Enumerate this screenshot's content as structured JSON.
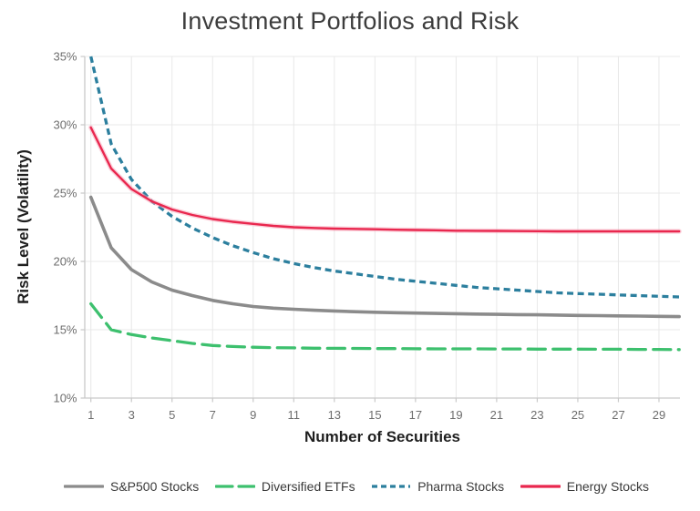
{
  "colors": {
    "background": "#ffffff",
    "grid": "#e8e8e8",
    "axis": "#c9c9c9",
    "tick_label": "#6e6e6e",
    "title": "#3d3d3d",
    "axis_title": "#1f1f1f",
    "legend_text": "#3a3a3a"
  },
  "chart_data": {
    "type": "line",
    "title": "Investment Portfolios and Risk",
    "xlabel": "Number of Securities",
    "ylabel": "Risk Level (Volatility)",
    "xlim": [
      1,
      30
    ],
    "ylim": [
      10,
      35
    ],
    "x_ticks": [
      1,
      3,
      5,
      7,
      9,
      11,
      13,
      15,
      17,
      19,
      21,
      23,
      25,
      27,
      29
    ],
    "y_ticks": [
      10,
      15,
      20,
      25,
      30,
      35
    ],
    "y_tick_suffix": "%",
    "grid": true,
    "legend_position": "bottom",
    "x": [
      1,
      2,
      3,
      4,
      5,
      6,
      7,
      8,
      9,
      10,
      11,
      12,
      13,
      14,
      15,
      16,
      17,
      18,
      19,
      20,
      21,
      22,
      23,
      24,
      25,
      26,
      27,
      28,
      29,
      30
    ],
    "series": [
      {
        "name": "S&P500 Stocks",
        "color": "#8b8b8b",
        "style": "solid",
        "width": 3.6,
        "values": [
          24.7,
          21.0,
          19.4,
          18.5,
          17.9,
          17.5,
          17.15,
          16.9,
          16.7,
          16.58,
          16.5,
          16.43,
          16.37,
          16.32,
          16.28,
          16.25,
          16.22,
          16.19,
          16.17,
          16.15,
          16.13,
          16.11,
          16.09,
          16.07,
          16.05,
          16.03,
          16.01,
          16.0,
          15.98,
          15.96
        ]
      },
      {
        "name": "Diversified ETFs",
        "color": "#3dc06e",
        "style": "long-dash",
        "width": 3.3,
        "values": [
          16.9,
          15.0,
          14.65,
          14.4,
          14.2,
          14.0,
          13.85,
          13.77,
          13.72,
          13.69,
          13.67,
          13.65,
          13.64,
          13.63,
          13.62,
          13.62,
          13.61,
          13.6,
          13.6,
          13.6,
          13.59,
          13.59,
          13.58,
          13.58,
          13.58,
          13.57,
          13.57,
          13.56,
          13.56,
          13.55
        ]
      },
      {
        "name": "Pharma Stocks",
        "color": "#2c7f9e",
        "style": "dash",
        "width": 3.3,
        "values": [
          35.0,
          28.6,
          26.0,
          24.4,
          23.3,
          22.45,
          21.75,
          21.15,
          20.65,
          20.2,
          19.85,
          19.55,
          19.3,
          19.1,
          18.9,
          18.7,
          18.55,
          18.4,
          18.25,
          18.1,
          18.0,
          17.9,
          17.8,
          17.7,
          17.65,
          17.6,
          17.55,
          17.5,
          17.45,
          17.4
        ]
      },
      {
        "name": "Energy Stocks",
        "color": "#e9274e",
        "halo": "#f7a5b9",
        "style": "solid",
        "width": 2.4,
        "values": [
          29.8,
          26.8,
          25.3,
          24.4,
          23.8,
          23.4,
          23.1,
          22.9,
          22.75,
          22.6,
          22.5,
          22.45,
          22.4,
          22.38,
          22.35,
          22.32,
          22.3,
          22.28,
          22.25,
          22.24,
          22.23,
          22.22,
          22.21,
          22.2,
          22.2,
          22.2,
          22.2,
          22.2,
          22.2,
          22.2
        ]
      }
    ]
  }
}
